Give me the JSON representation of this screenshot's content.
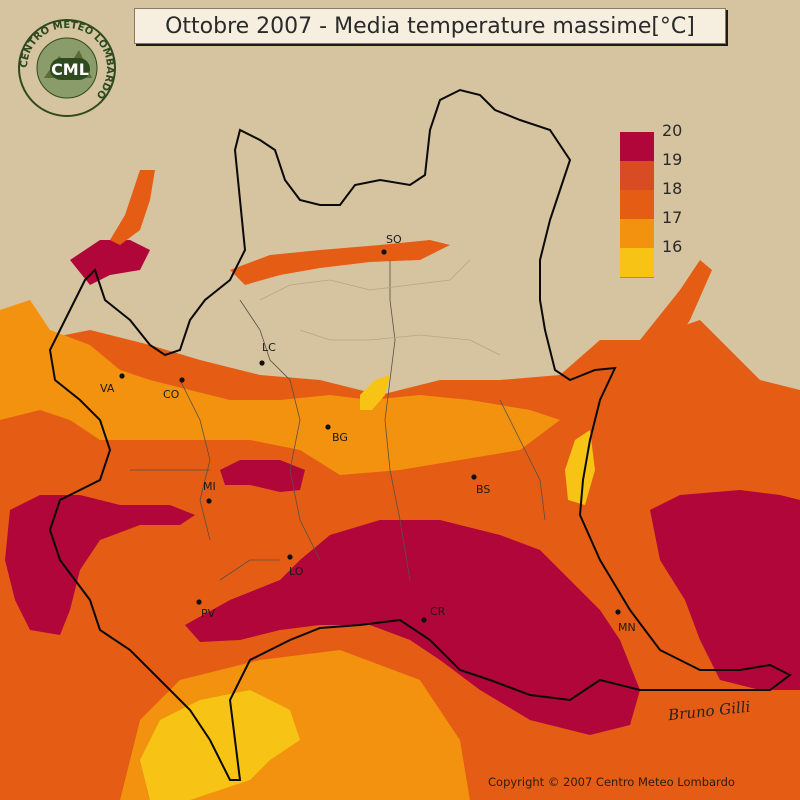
{
  "title": "Ottobre 2007 - Media temperature massime[°C]",
  "logo": {
    "abbreviation": "CML",
    "ring_text": "CENTRO METEO LOMBARDO"
  },
  "legend": [
    {
      "label": "20",
      "color": "#b0063a"
    },
    {
      "label": "19",
      "color": "#d94b22"
    },
    {
      "label": "18",
      "color": "#e55c15"
    },
    {
      "label": "17",
      "color": "#f2920f"
    },
    {
      "label": "16",
      "color": "#f7c415"
    }
  ],
  "cities": [
    {
      "name": "SO"
    },
    {
      "name": "LC"
    },
    {
      "name": "VA"
    },
    {
      "name": "CO"
    },
    {
      "name": "BG"
    },
    {
      "name": "MI"
    },
    {
      "name": "BS"
    },
    {
      "name": "LO"
    },
    {
      "name": "PV"
    },
    {
      "name": "CR"
    },
    {
      "name": "MN"
    }
  ],
  "copyright": "Copyright © 2007 Centro Meteo Lombardo",
  "signature": "Bruno Gilli",
  "colors": {
    "terrain": "#d6c3a0",
    "band_17": "#f2920f",
    "band_16": "#f7c415",
    "band_18": "#e55c15",
    "band_20": "#b0063a",
    "border": "#0a0a0a"
  }
}
